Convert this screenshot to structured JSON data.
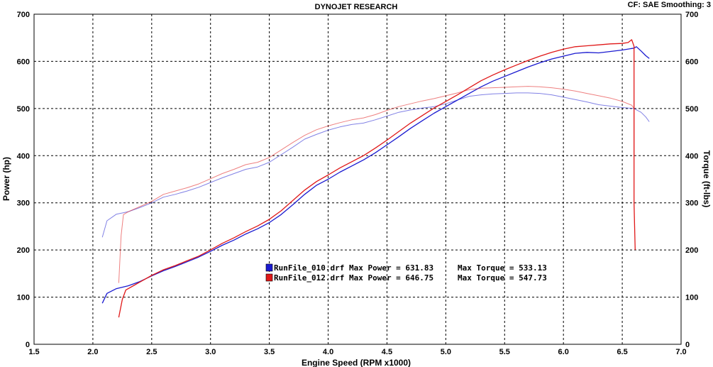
{
  "header": {
    "title": "DYNOJET RESEARCH",
    "info": "CF: SAE  Smoothing: 3"
  },
  "chart_data": {
    "type": "line",
    "title": "DYNOJET RESEARCH",
    "xlabel": "Engine Speed (RPM x1000)",
    "ylabel_left": "Power (hp)",
    "ylabel_right": "Torque (ft-lbs)",
    "xlim": [
      1.5,
      7.0
    ],
    "ylim": [
      0,
      700
    ],
    "x_ticks": [
      "1.5",
      "2.0",
      "2.5",
      "3.0",
      "3.5",
      "4.0",
      "4.5",
      "5.0",
      "5.5",
      "6.0",
      "6.5",
      "7.0"
    ],
    "y_ticks": [
      "0",
      "100",
      "200",
      "300",
      "400",
      "500",
      "600",
      "700"
    ],
    "grid": true,
    "colors": {
      "run010": "#1a1ad0",
      "run012": "#e01818"
    },
    "legend": [
      {
        "file": "RunFile_010.drf",
        "max_power_label": "Max Power =",
        "max_power": "631.83",
        "max_torque_label": "Max Torque =",
        "max_torque": "533.13",
        "color": "#1a1ad0"
      },
      {
        "file": "RunFile_012.drf",
        "max_power_label": "Max Power =",
        "max_power": "646.75",
        "max_torque_label": "Max Torque =",
        "max_torque": "547.73",
        "color": "#e01818"
      }
    ],
    "series": [
      {
        "name": "RunFile_010.drf",
        "kind": "power",
        "color": "#1a1ad0",
        "points": [
          [
            2.08,
            87
          ],
          [
            2.12,
            108
          ],
          [
            2.2,
            118
          ],
          [
            2.3,
            124
          ],
          [
            2.4,
            133
          ],
          [
            2.5,
            145
          ],
          [
            2.6,
            156
          ],
          [
            2.7,
            165
          ],
          [
            2.8,
            175
          ],
          [
            2.9,
            185
          ],
          [
            3.0,
            197
          ],
          [
            3.1,
            210
          ],
          [
            3.2,
            221
          ],
          [
            3.3,
            234
          ],
          [
            3.4,
            245
          ],
          [
            3.5,
            258
          ],
          [
            3.6,
            275
          ],
          [
            3.7,
            296
          ],
          [
            3.8,
            318
          ],
          [
            3.9,
            337
          ],
          [
            4.0,
            350
          ],
          [
            4.1,
            365
          ],
          [
            4.2,
            378
          ],
          [
            4.3,
            391
          ],
          [
            4.4,
            406
          ],
          [
            4.5,
            423
          ],
          [
            4.6,
            440
          ],
          [
            4.7,
            458
          ],
          [
            4.8,
            474
          ],
          [
            4.9,
            490
          ],
          [
            5.0,
            504
          ],
          [
            5.1,
            518
          ],
          [
            5.2,
            532
          ],
          [
            5.3,
            546
          ],
          [
            5.4,
            558
          ],
          [
            5.5,
            568
          ],
          [
            5.6,
            578
          ],
          [
            5.7,
            588
          ],
          [
            5.8,
            597
          ],
          [
            5.9,
            605
          ],
          [
            6.0,
            611
          ],
          [
            6.1,
            617
          ],
          [
            6.2,
            619
          ],
          [
            6.3,
            618
          ],
          [
            6.4,
            621
          ],
          [
            6.5,
            624
          ],
          [
            6.6,
            628
          ],
          [
            6.62,
            631
          ],
          [
            6.66,
            622
          ],
          [
            6.7,
            612
          ],
          [
            6.73,
            606
          ]
        ]
      },
      {
        "name": "RunFile_010.drf",
        "kind": "torque",
        "color": "#1a1ad0",
        "points": [
          [
            2.08,
            227
          ],
          [
            2.12,
            262
          ],
          [
            2.2,
            276
          ],
          [
            2.3,
            281
          ],
          [
            2.4,
            290
          ],
          [
            2.5,
            300
          ],
          [
            2.6,
            312
          ],
          [
            2.7,
            318
          ],
          [
            2.8,
            325
          ],
          [
            2.9,
            333
          ],
          [
            3.0,
            343
          ],
          [
            3.1,
            353
          ],
          [
            3.2,
            362
          ],
          [
            3.3,
            371
          ],
          [
            3.4,
            376
          ],
          [
            3.5,
            386
          ],
          [
            3.6,
            402
          ],
          [
            3.7,
            418
          ],
          [
            3.8,
            435
          ],
          [
            3.9,
            445
          ],
          [
            4.0,
            454
          ],
          [
            4.1,
            461
          ],
          [
            4.2,
            466
          ],
          [
            4.3,
            469
          ],
          [
            4.4,
            476
          ],
          [
            4.5,
            484
          ],
          [
            4.6,
            492
          ],
          [
            4.7,
            497
          ],
          [
            4.8,
            501
          ],
          [
            4.9,
            504
          ],
          [
            5.0,
            510
          ],
          [
            5.1,
            518
          ],
          [
            5.2,
            526
          ],
          [
            5.3,
            529
          ],
          [
            5.4,
            531
          ],
          [
            5.5,
            532
          ],
          [
            5.6,
            533
          ],
          [
            5.7,
            533
          ],
          [
            5.8,
            532
          ],
          [
            5.9,
            529
          ],
          [
            6.0,
            524
          ],
          [
            6.1,
            519
          ],
          [
            6.2,
            514
          ],
          [
            6.3,
            508
          ],
          [
            6.4,
            505
          ],
          [
            6.5,
            502
          ],
          [
            6.6,
            500
          ],
          [
            6.66,
            492
          ],
          [
            6.7,
            482
          ],
          [
            6.73,
            472
          ]
        ]
      },
      {
        "name": "RunFile_012.drf",
        "kind": "power",
        "color": "#e01818",
        "points": [
          [
            2.22,
            57
          ],
          [
            2.25,
            95
          ],
          [
            2.28,
            115
          ],
          [
            2.35,
            125
          ],
          [
            2.4,
            132
          ],
          [
            2.5,
            146
          ],
          [
            2.6,
            158
          ],
          [
            2.7,
            167
          ],
          [
            2.8,
            177
          ],
          [
            2.9,
            187
          ],
          [
            3.0,
            200
          ],
          [
            3.1,
            214
          ],
          [
            3.2,
            226
          ],
          [
            3.3,
            239
          ],
          [
            3.4,
            251
          ],
          [
            3.5,
            265
          ],
          [
            3.6,
            283
          ],
          [
            3.7,
            305
          ],
          [
            3.8,
            327
          ],
          [
            3.9,
            345
          ],
          [
            4.0,
            359
          ],
          [
            4.1,
            374
          ],
          [
            4.2,
            387
          ],
          [
            4.3,
            400
          ],
          [
            4.4,
            416
          ],
          [
            4.5,
            433
          ],
          [
            4.6,
            451
          ],
          [
            4.7,
            469
          ],
          [
            4.8,
            485
          ],
          [
            4.9,
            501
          ],
          [
            5.0,
            515
          ],
          [
            5.1,
            529
          ],
          [
            5.2,
            544
          ],
          [
            5.3,
            559
          ],
          [
            5.4,
            571
          ],
          [
            5.5,
            582
          ],
          [
            5.6,
            592
          ],
          [
            5.7,
            602
          ],
          [
            5.8,
            611
          ],
          [
            5.9,
            619
          ],
          [
            6.0,
            626
          ],
          [
            6.1,
            631
          ],
          [
            6.2,
            633
          ],
          [
            6.3,
            635
          ],
          [
            6.4,
            637
          ],
          [
            6.5,
            638
          ],
          [
            6.55,
            640
          ],
          [
            6.58,
            646
          ],
          [
            6.6,
            632
          ],
          [
            6.6,
            300
          ],
          [
            6.61,
            200
          ]
        ]
      },
      {
        "name": "RunFile_012.drf",
        "kind": "torque",
        "color": "#e01818",
        "points": [
          [
            2.22,
            130
          ],
          [
            2.24,
            230
          ],
          [
            2.26,
            275
          ],
          [
            2.3,
            281
          ],
          [
            2.4,
            292
          ],
          [
            2.5,
            303
          ],
          [
            2.6,
            318
          ],
          [
            2.7,
            325
          ],
          [
            2.8,
            332
          ],
          [
            2.9,
            340
          ],
          [
            3.0,
            351
          ],
          [
            3.1,
            362
          ],
          [
            3.2,
            371
          ],
          [
            3.3,
            381
          ],
          [
            3.4,
            386
          ],
          [
            3.5,
            396
          ],
          [
            3.6,
            412
          ],
          [
            3.7,
            428
          ],
          [
            3.8,
            443
          ],
          [
            3.9,
            455
          ],
          [
            4.0,
            463
          ],
          [
            4.1,
            470
          ],
          [
            4.2,
            476
          ],
          [
            4.3,
            480
          ],
          [
            4.4,
            487
          ],
          [
            4.5,
            496
          ],
          [
            4.6,
            504
          ],
          [
            4.7,
            510
          ],
          [
            4.8,
            516
          ],
          [
            4.9,
            521
          ],
          [
            5.0,
            527
          ],
          [
            5.1,
            533
          ],
          [
            5.2,
            540
          ],
          [
            5.3,
            543
          ],
          [
            5.4,
            544
          ],
          [
            5.5,
            545
          ],
          [
            5.6,
            546
          ],
          [
            5.7,
            547
          ],
          [
            5.8,
            546
          ],
          [
            5.9,
            544
          ],
          [
            6.0,
            541
          ],
          [
            6.1,
            537
          ],
          [
            6.2,
            532
          ],
          [
            6.3,
            527
          ],
          [
            6.4,
            522
          ],
          [
            6.5,
            515
          ],
          [
            6.58,
            507
          ],
          [
            6.6,
            500
          ],
          [
            6.6,
            399
          ]
        ]
      }
    ]
  }
}
